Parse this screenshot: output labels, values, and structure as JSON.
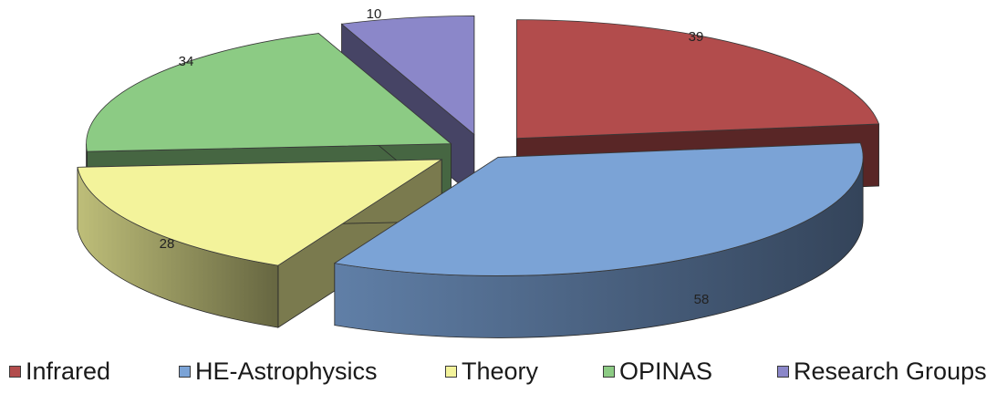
{
  "chart_data": {
    "type": "pie",
    "style": "3d-exploded",
    "title": "",
    "categories": [
      "Infrared",
      "HE-Astrophysics",
      "Theory",
      "OPINAS",
      "Research Groups"
    ],
    "values": [
      39,
      58,
      28,
      34,
      10
    ],
    "colors": [
      "#b24c4c",
      "#7ba3d6",
      "#f3f39b",
      "#8ccb84",
      "#8b87c9"
    ],
    "legend": {
      "position": "bottom",
      "entries": [
        "Infrared",
        "HE-Astrophysics",
        "Theory",
        "OPINAS",
        "Research Groups"
      ]
    }
  }
}
